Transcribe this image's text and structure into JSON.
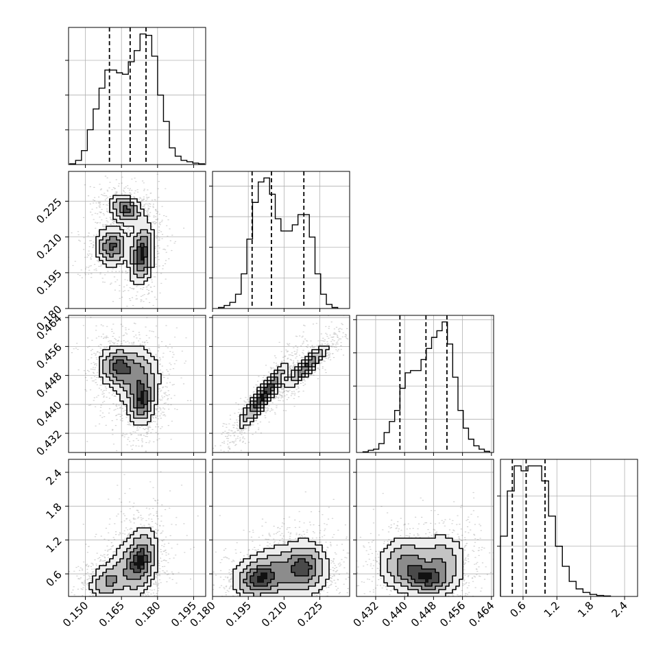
{
  "chart_data": {
    "type": "corner",
    "grid": true,
    "title": "",
    "parameters": [
      {
        "range": [
          0.143,
          0.2
        ],
        "ticks": [
          "0.150",
          "0.165",
          "0.180",
          "0.195"
        ],
        "quantiles": [
          0.16,
          0.1686,
          0.1752
        ],
        "hist": {
          "edges_range": [
            0.1435,
            0.1995
          ],
          "counts": [
            0.5,
            3,
            10,
            25,
            40,
            55,
            68,
            68,
            66,
            65,
            74,
            82,
            94,
            93,
            78,
            50,
            31,
            12,
            6,
            3,
            2,
            1,
            0.5
          ]
        }
      },
      {
        "range": [
          0.18,
          0.2375
        ],
        "ticks": [
          "0.180",
          "0.195",
          "0.210",
          "0.225"
        ],
        "quantiles": [
          0.1966,
          0.2047,
          0.2183
        ],
        "hist": {
          "edges_range": [
            0.1825,
            0.2325
          ],
          "counts": [
            0.5,
            1.5,
            3,
            7,
            17,
            34,
            52,
            62,
            64,
            56,
            44,
            38,
            38,
            41,
            46,
            46,
            35,
            17,
            7,
            2,
            0.5
          ]
        }
      },
      {
        "range": [
          0.4267,
          0.4646
        ],
        "ticks": [
          "0.432",
          "0.440",
          "0.448",
          "0.456",
          "0.464"
        ],
        "quantiles": [
          0.4387,
          0.4459,
          0.4517
        ],
        "hist": {
          "edges_range": [
            0.4285,
            0.4635
          ],
          "counts": [
            0.3,
            1,
            1.5,
            4,
            9,
            14,
            19,
            29,
            36,
            37,
            37,
            42,
            47,
            52,
            55,
            59,
            49,
            34,
            19,
            11,
            6,
            3,
            1.5,
            0.5
          ]
        }
      },
      {
        "range": [
          0.2,
          2.63
        ],
        "ticks": [
          "0.6",
          "1.2",
          "1.8",
          "2.4"
        ],
        "quantiles": [
          0.41,
          0.655,
          0.99
        ],
        "hist": {
          "edges_range": [
            0.2,
            2.15
          ],
          "counts": [
            12,
            21,
            26,
            25,
            26,
            26,
            23,
            16,
            10,
            6,
            3,
            1.5,
            0.8,
            0.4,
            0.2,
            0.1
          ]
        }
      }
    ],
    "pair_panels": [
      {
        "row": 1,
        "col": 0,
        "blobs": [
          [
            0.161,
            0.206,
            0.0036,
            0.0042,
            0.0,
            0.3
          ],
          [
            0.1735,
            0.203,
            0.0027,
            0.0065,
            0.2,
            0.36
          ],
          [
            0.167,
            0.2215,
            0.0036,
            0.0033,
            -0.3,
            0.3
          ]
        ]
      },
      {
        "row": 2,
        "col": 0,
        "blobs": [
          [
            0.163,
            0.4505,
            0.004,
            0.0028,
            0.0,
            0.35
          ],
          [
            0.1735,
            0.4405,
            0.0027,
            0.0033,
            0.1,
            0.35
          ],
          [
            0.1715,
            0.4475,
            0.005,
            0.0045,
            0.0,
            0.3
          ]
        ]
      },
      {
        "row": 2,
        "col": 1,
        "blobs": [
          [
            0.2015,
            0.4425,
            0.0052,
            0.0044,
            0.92,
            0.55
          ],
          [
            0.2195,
            0.4505,
            0.0045,
            0.003,
            0.9,
            0.45
          ]
        ]
      },
      {
        "row": 3,
        "col": 0,
        "blobs": [
          [
            0.159,
            0.45,
            0.004,
            0.16,
            0.2,
            0.3
          ],
          [
            0.173,
            0.85,
            0.0035,
            0.3,
            0.25,
            0.45
          ],
          [
            0.168,
            0.7,
            0.006,
            0.28,
            0.3,
            0.25
          ]
        ]
      },
      {
        "row": 3,
        "col": 1,
        "blobs": [
          [
            0.199,
            0.5,
            0.0055,
            0.18,
            0.1,
            0.4
          ],
          [
            0.219,
            0.72,
            0.005,
            0.25,
            0.0,
            0.35
          ],
          [
            0.209,
            0.65,
            0.008,
            0.25,
            0.0,
            0.25
          ]
        ]
      },
      {
        "row": 3,
        "col": 2,
        "blobs": [
          [
            0.4465,
            0.5,
            0.004,
            0.16,
            -0.1,
            0.4
          ],
          [
            0.4405,
            0.78,
            0.004,
            0.25,
            0.0,
            0.35
          ],
          [
            0.4505,
            0.85,
            0.0035,
            0.25,
            0.0,
            0.25
          ]
        ]
      }
    ]
  }
}
